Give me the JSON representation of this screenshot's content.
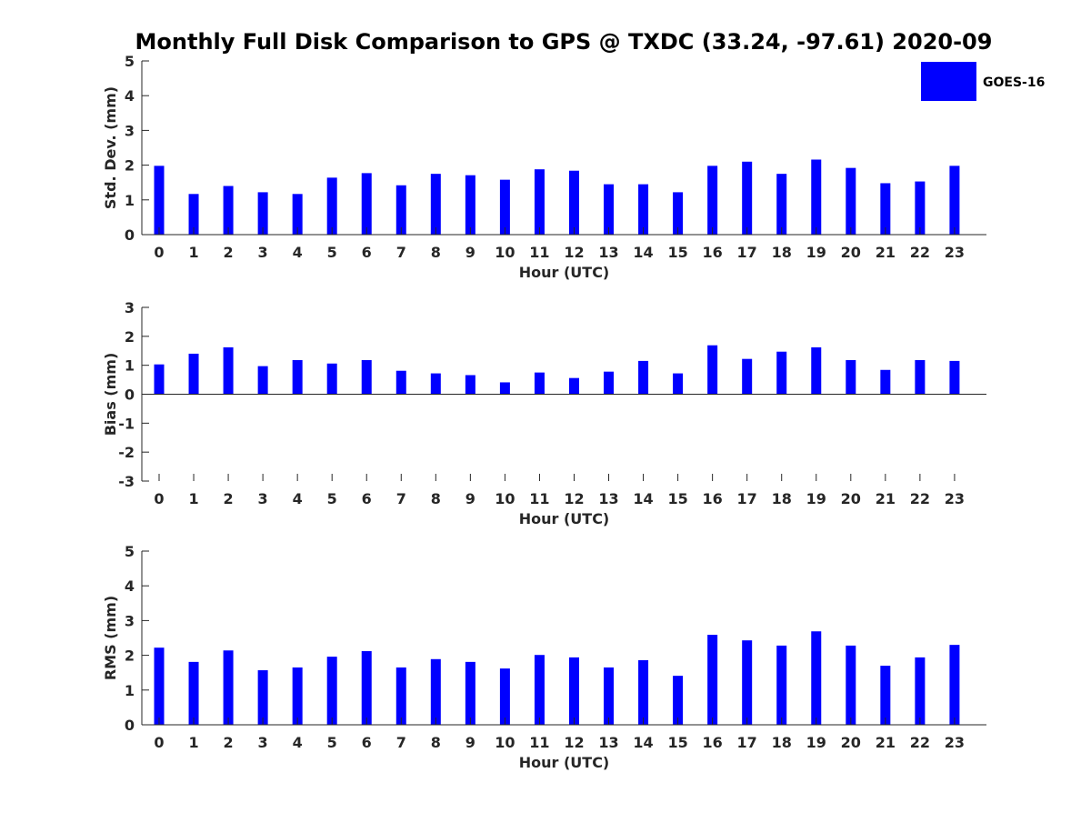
{
  "chart_data": {
    "type": "bar",
    "title": "Monthly Full Disk Comparison to GPS @ TXDC (33.24, -97.61) 2020-09",
    "legend": {
      "entries": [
        "GOES-16"
      ],
      "placement": "top-right"
    },
    "series_color": "#0000ff",
    "categories": [
      "0",
      "1",
      "2",
      "3",
      "4",
      "5",
      "6",
      "7",
      "8",
      "9",
      "10",
      "11",
      "12",
      "13",
      "14",
      "15",
      "16",
      "17",
      "18",
      "19",
      "20",
      "21",
      "22",
      "23"
    ],
    "panels": [
      {
        "name": "std-dev",
        "ylabel": "Std. Dev. (mm)",
        "xlabel": "Hour (UTC)",
        "ylim": [
          0,
          5
        ],
        "yticks": [
          "0",
          "1",
          "2",
          "3",
          "4",
          "5"
        ],
        "series": [
          {
            "name": "GOES-16",
            "values": [
              1.98,
              1.17,
              1.4,
              1.22,
              1.17,
              1.64,
              1.77,
              1.42,
              1.75,
              1.71,
              1.58,
              1.88,
              1.84,
              1.45,
              1.45,
              1.22,
              1.98,
              2.1,
              1.75,
              2.16,
              1.92,
              1.48,
              1.53,
              1.98
            ]
          }
        ]
      },
      {
        "name": "bias",
        "ylabel": "Bias (mm)",
        "xlabel": "Hour (UTC)",
        "ylim": [
          -3,
          3
        ],
        "yticks": [
          "-3",
          "-2",
          "-1",
          "0",
          "1",
          "2",
          "3"
        ],
        "series": [
          {
            "name": "GOES-16",
            "values": [
              1.03,
              1.4,
              1.62,
              0.97,
              1.18,
              1.06,
              1.18,
              0.81,
              0.72,
              0.66,
              0.41,
              0.75,
              0.56,
              0.78,
              1.15,
              0.72,
              1.69,
              1.22,
              1.47,
              1.62,
              1.18,
              0.84,
              1.18,
              1.15
            ]
          }
        ]
      },
      {
        "name": "rms",
        "ylabel": "RMS (mm)",
        "xlabel": "Hour (UTC)",
        "ylim": [
          0,
          5
        ],
        "yticks": [
          "0",
          "1",
          "2",
          "3",
          "4",
          "5"
        ],
        "series": [
          {
            "name": "GOES-16",
            "values": [
              2.22,
              1.81,
              2.14,
              1.57,
              1.65,
              1.96,
              2.12,
              1.65,
              1.89,
              1.81,
              1.62,
              2.01,
              1.94,
              1.65,
              1.86,
              1.41,
              2.59,
              2.43,
              2.28,
              2.69,
              2.28,
              1.7,
              1.94,
              2.3
            ]
          }
        ]
      }
    ]
  }
}
